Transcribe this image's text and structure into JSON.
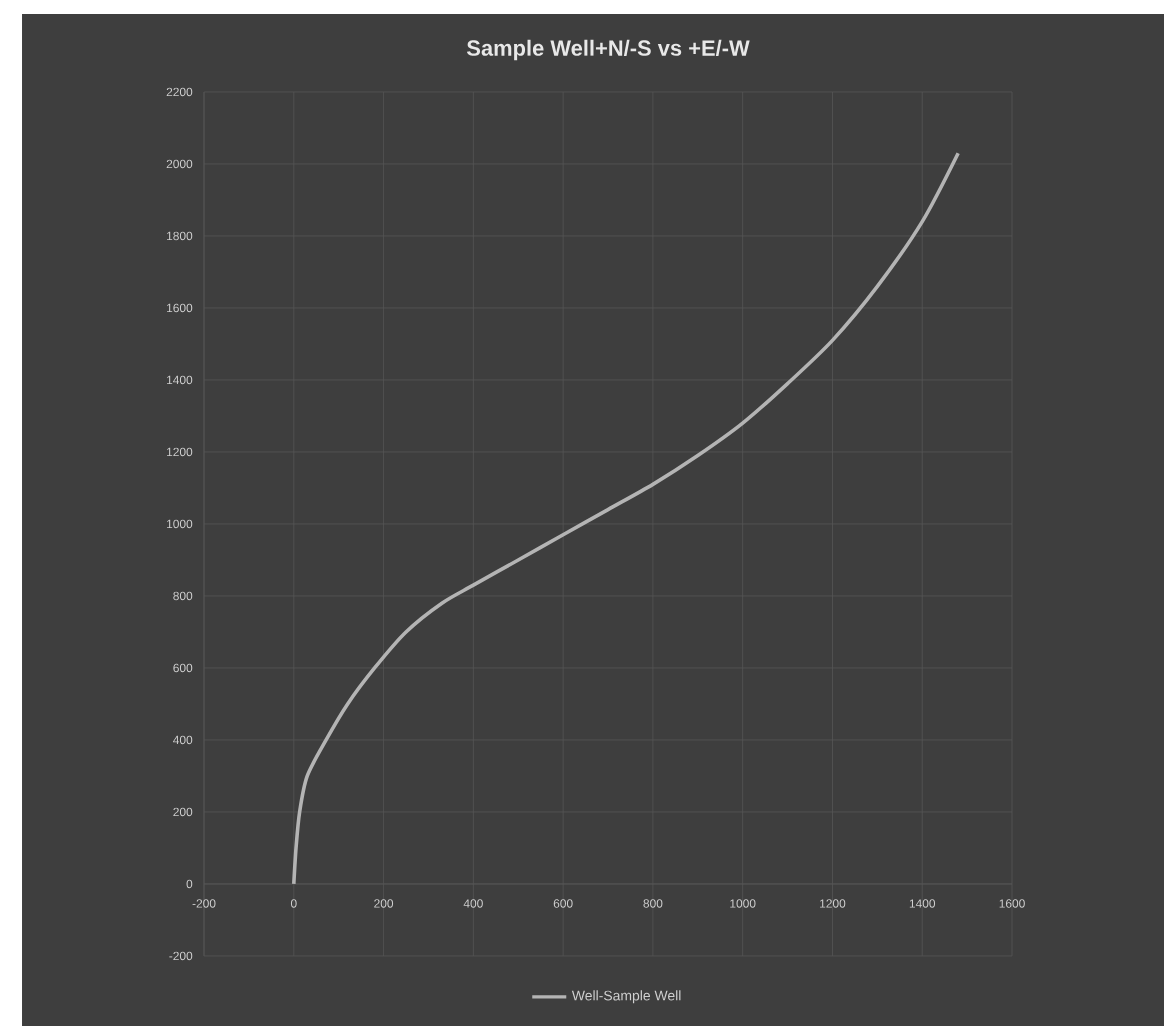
{
  "chart_data": {
    "type": "line",
    "title": "Sample Well+N/-S vs +E/-W",
    "series": [
      {
        "name": "Well-Sample Well",
        "color": "#b4b4b4",
        "x": [
          0,
          5,
          13,
          30,
          72,
          120,
          180,
          250,
          330,
          400,
          500,
          600,
          700,
          800,
          900,
          1000,
          1100,
          1200,
          1300,
          1400,
          1480
        ],
        "values": [
          0,
          100,
          200,
          300,
          400,
          500,
          600,
          700,
          780,
          830,
          900,
          970,
          1040,
          1110,
          1190,
          1280,
          1390,
          1510,
          1660,
          1840,
          2030
        ]
      }
    ],
    "xlim": [
      -200,
      1600
    ],
    "xticks": [
      -200,
      0,
      200,
      400,
      600,
      800,
      1000,
      1200,
      1400,
      1600
    ],
    "ylim": [
      -200,
      2200
    ],
    "yticks": [
      -200,
      0,
      200,
      400,
      600,
      800,
      1000,
      1200,
      1400,
      1600,
      1800,
      2000,
      2200
    ],
    "grid": true,
    "legend": "bottom",
    "marker": "none",
    "line_style": "solid"
  }
}
